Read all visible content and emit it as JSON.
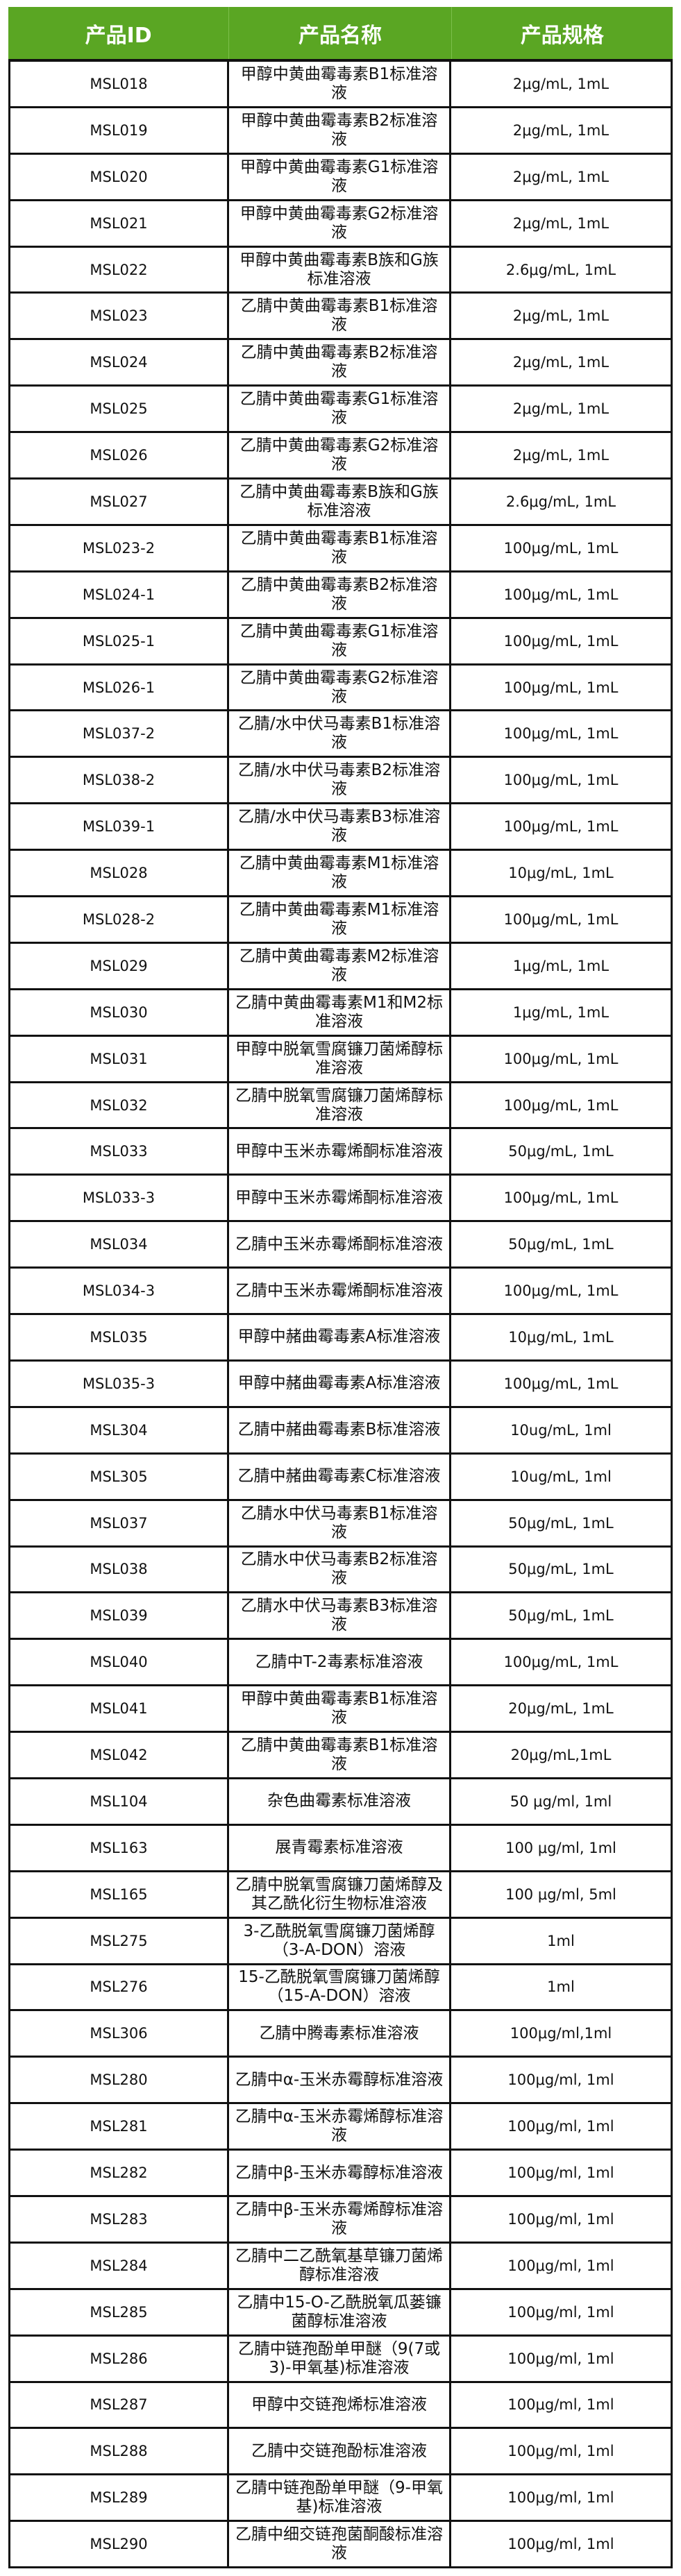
{
  "table": {
    "header_color": "#5aa623",
    "headers": {
      "id": "产品ID",
      "name": "产品名称",
      "spec": "产品规格"
    },
    "rows": [
      {
        "id": "MSL018",
        "name": "甲醇中黄曲霉毒素B1标准溶液",
        "spec": "2μg/mL, 1mL"
      },
      {
        "id": "MSL019",
        "name": "甲醇中黄曲霉毒素B2标准溶液",
        "spec": "2μg/mL, 1mL"
      },
      {
        "id": "MSL020",
        "name": "甲醇中黄曲霉毒素G1标准溶液",
        "spec": "2μg/mL, 1mL"
      },
      {
        "id": "MSL021",
        "name": "甲醇中黄曲霉毒素G2标准溶液",
        "spec": "2μg/mL, 1mL"
      },
      {
        "id": "MSL022",
        "name": "甲醇中黄曲霉毒素B族和G族标准溶液",
        "spec": "2.6μg/mL, 1mL"
      },
      {
        "id": "MSL023",
        "name": "乙腈中黄曲霉毒素B1标准溶液",
        "spec": "2μg/mL, 1mL"
      },
      {
        "id": "MSL024",
        "name": "乙腈中黄曲霉毒素B2标准溶液",
        "spec": "2μg/mL, 1mL"
      },
      {
        "id": "MSL025",
        "name": "乙腈中黄曲霉毒素G1标准溶液",
        "spec": "2μg/mL, 1mL"
      },
      {
        "id": "MSL026",
        "name": "乙腈中黄曲霉毒素G2标准溶液",
        "spec": "2μg/mL, 1mL"
      },
      {
        "id": "MSL027",
        "name": "乙腈中黄曲霉毒素B族和G族标准溶液",
        "spec": "2.6μg/mL, 1mL"
      },
      {
        "id": "MSL023-2",
        "name": "乙腈中黄曲霉毒素B1标准溶液",
        "spec": "100μg/mL, 1mL"
      },
      {
        "id": "MSL024-1",
        "name": "乙腈中黄曲霉毒素B2标准溶液",
        "spec": "100μg/mL, 1mL"
      },
      {
        "id": "MSL025-1",
        "name": "乙腈中黄曲霉毒素G1标准溶液",
        "spec": "100μg/mL, 1mL"
      },
      {
        "id": "MSL026-1",
        "name": "乙腈中黄曲霉毒素G2标准溶液",
        "spec": "100μg/mL, 1mL"
      },
      {
        "id": "MSL037-2",
        "name": "乙腈/水中伏马毒素B1标准溶液",
        "spec": "100μg/mL, 1mL"
      },
      {
        "id": "MSL038-2",
        "name": "乙腈/水中伏马毒素B2标准溶液",
        "spec": "100μg/mL, 1mL"
      },
      {
        "id": "MSL039-1",
        "name": "乙腈/水中伏马毒素B3标准溶液",
        "spec": "100μg/mL, 1mL"
      },
      {
        "id": "MSL028",
        "name": "乙腈中黄曲霉毒素M1标准溶液",
        "spec": "10μg/mL, 1mL"
      },
      {
        "id": "MSL028-2",
        "name": "乙腈中黄曲霉毒素M1标准溶液",
        "spec": "100μg/mL, 1mL"
      },
      {
        "id": "MSL029",
        "name": "乙腈中黄曲霉毒素M2标准溶液",
        "spec": "1μg/mL, 1mL"
      },
      {
        "id": "MSL030",
        "name": "乙腈中黄曲霉毒素M1和M2标准溶液",
        "spec": "1μg/mL, 1mL"
      },
      {
        "id": "MSL031",
        "name": "甲醇中脱氧雪腐镰刀菌烯醇标准溶液",
        "spec": "100μg/mL, 1mL"
      },
      {
        "id": "MSL032",
        "name": "乙腈中脱氧雪腐镰刀菌烯醇标准溶液",
        "spec": "100μg/mL, 1mL"
      },
      {
        "id": "MSL033",
        "name": "甲醇中玉米赤霉烯酮标准溶液",
        "spec": "50μg/mL, 1mL"
      },
      {
        "id": "MSL033-3",
        "name": "甲醇中玉米赤霉烯酮标准溶液",
        "spec": "100μg/mL, 1mL"
      },
      {
        "id": "MSL034",
        "name": "乙腈中玉米赤霉烯酮标准溶液",
        "spec": "50μg/mL, 1mL"
      },
      {
        "id": "MSL034-3",
        "name": "乙腈中玉米赤霉烯酮标准溶液",
        "spec": "100μg/mL, 1mL"
      },
      {
        "id": "MSL035",
        "name": "甲醇中赭曲霉毒素A标准溶液",
        "spec": "10μg/mL, 1mL"
      },
      {
        "id": "MSL035-3",
        "name": "甲醇中赭曲霉毒素A标准溶液",
        "spec": "100μg/mL, 1mL"
      },
      {
        "id": "MSL304",
        "name": "乙腈中赭曲霉毒素B标准溶液",
        "spec": "10ug/mL, 1ml"
      },
      {
        "id": "MSL305",
        "name": "乙腈中赭曲霉毒素C标准溶液",
        "spec": "10ug/mL, 1ml"
      },
      {
        "id": "MSL037",
        "name": "乙腈水中伏马毒素B1标准溶液",
        "spec": "50μg/mL, 1mL"
      },
      {
        "id": "MSL038",
        "name": "乙腈水中伏马毒素B2标准溶液",
        "spec": "50μg/mL, 1mL"
      },
      {
        "id": "MSL039",
        "name": "乙腈水中伏马毒素B3标准溶液",
        "spec": "50μg/mL, 1mL"
      },
      {
        "id": "MSL040",
        "name": "乙腈中T-2毒素标准溶液",
        "spec": "100μg/mL, 1mL"
      },
      {
        "id": "MSL041",
        "name": "甲醇中黄曲霉毒素B1标准溶液",
        "spec": "20μg/mL, 1mL"
      },
      {
        "id": "MSL042",
        "name": "乙腈中黄曲霉毒素B1标准溶液",
        "spec": "20μg/mL,1mL"
      },
      {
        "id": "MSL104",
        "name": "杂色曲霉素标准溶液",
        "spec": "50 μg/ml, 1ml"
      },
      {
        "id": "MSL163",
        "name": "展青霉素标准溶液",
        "spec": "100 μg/ml, 1ml"
      },
      {
        "id": "MSL165",
        "name": "乙腈中脱氧雪腐镰刀菌烯醇及其乙酰化衍生物标准溶液",
        "spec": "100 μg/ml, 5ml"
      },
      {
        "id": "MSL275",
        "name": "3-乙酰脱氧雪腐镰刀菌烯醇（3-A-DON）溶液",
        "spec": "1ml"
      },
      {
        "id": "MSL276",
        "name": "15-乙酰脱氧雪腐镰刀菌烯醇（15-A-DON）溶液",
        "spec": "1ml"
      },
      {
        "id": "MSL306",
        "name": "乙腈中腾毒素标准溶液",
        "spec": "100μg/ml,1ml"
      },
      {
        "id": "MSL280",
        "name": "乙腈中α-玉米赤霉醇标准溶液",
        "spec": "100μg/ml, 1ml"
      },
      {
        "id": "MSL281",
        "name": "乙腈中α-玉米赤霉烯醇标准溶液",
        "spec": "100μg/ml, 1ml"
      },
      {
        "id": "MSL282",
        "name": "乙腈中β-玉米赤霉醇标准溶液",
        "spec": "100μg/ml, 1ml"
      },
      {
        "id": "MSL283",
        "name": "乙腈中β-玉米赤霉烯醇标准溶液",
        "spec": "100μg/ml, 1ml"
      },
      {
        "id": "MSL284",
        "name": "乙腈中二乙酰氧基草镰刀菌烯醇标准溶液",
        "spec": "100μg/ml, 1ml"
      },
      {
        "id": "MSL285",
        "name": "乙腈中15-O-乙酰脱氧瓜蒌镰菌醇标准溶液",
        "spec": "100μg/ml, 1ml"
      },
      {
        "id": "MSL286",
        "name": "乙腈中链孢酚单甲醚（9(7或3)-甲氧基)标准溶液",
        "spec": "100μg/ml, 1ml"
      },
      {
        "id": "MSL287",
        "name": "甲醇中交链孢烯标准溶液",
        "spec": "100μg/ml, 1ml"
      },
      {
        "id": "MSL288",
        "name": "乙腈中交链孢酚标准溶液",
        "spec": "100μg/ml, 1ml"
      },
      {
        "id": "MSL289",
        "name": "乙腈中链孢酚单甲醚（9-甲氧基)标准溶液",
        "spec": "100μg/ml, 1ml"
      },
      {
        "id": "MSL290",
        "name": "乙腈中细交链孢菌酮酸标准溶液",
        "spec": "100μg/ml, 1ml"
      }
    ]
  }
}
